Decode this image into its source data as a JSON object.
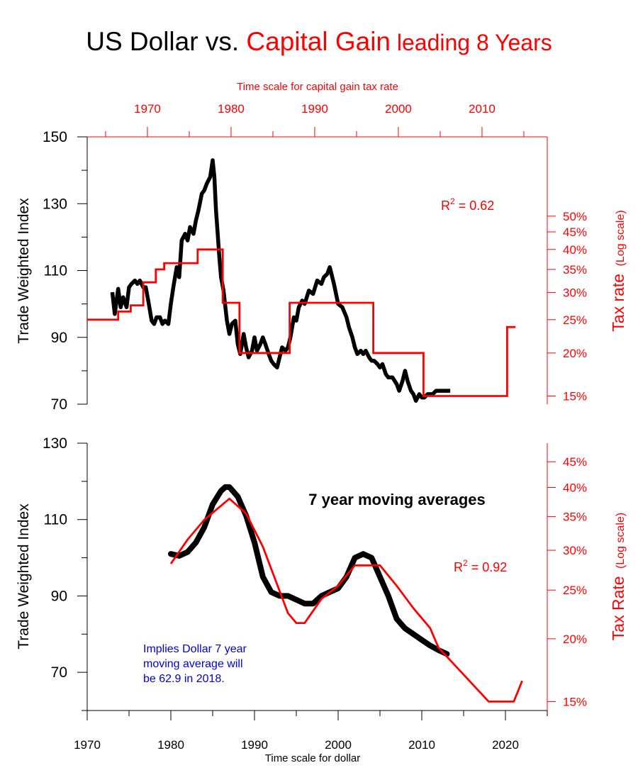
{
  "title": {
    "part1": "US Dollar vs. ",
    "part2": "Capital Gain",
    "part3": " leading 8 Years"
  },
  "colors": {
    "dollar": "#000000",
    "tax": "#ff0000",
    "note": "#0000dd"
  },
  "chart_data": [
    {
      "type": "line",
      "title": "US Dollar vs. Capital Gain leading 8 Years",
      "ylabel": "Trade Weighted Index",
      "ylabel_right": "Tax rate",
      "ylabel_right_suffix": "(Log scale)",
      "xlabel_top": "Time scale for capital gain tax rate",
      "ylim": [
        70,
        150
      ],
      "y_ticks": [
        70,
        90,
        110,
        130,
        150
      ],
      "x_top_ticks": [
        "1970",
        "1980",
        "1990",
        "2000",
        "2010"
      ],
      "x_top_range": [
        1962.8,
        2017.8
      ],
      "x_bottom_range": [
        1970,
        2025
      ],
      "right_ticks": [
        "15%",
        "20%",
        "25%",
        "30%",
        "35%",
        "40%",
        "45%",
        "50%"
      ],
      "right_scale": "log",
      "right_range_pct": [
        14.2,
        85
      ],
      "annotation": "R2 = 0.62",
      "series": [
        {
          "x": [
            1973.0,
            1973.3,
            1973.7,
            1974.0,
            1974.3,
            1974.7,
            1975.0,
            1975.3,
            1975.7,
            1976.0,
            1976.3,
            1976.7,
            1977.0,
            1977.3,
            1977.7,
            1978.0,
            1978.3,
            1978.7,
            1979.0,
            1979.3,
            1979.7,
            1980.0,
            1980.3,
            1980.7,
            1981.0,
            1981.3,
            1981.7,
            1982.0,
            1982.3,
            1982.7,
            1983.0,
            1983.3,
            1983.7,
            1984.0,
            1984.3,
            1984.7,
            1985.0,
            1985.2,
            1985.4,
            1985.6,
            1985.8,
            1986.0,
            1986.3,
            1986.7,
            1987.0,
            1987.3,
            1987.7,
            1988.0,
            1988.3,
            1988.7,
            1989.0,
            1989.3,
            1989.7,
            1990.0,
            1990.3,
            1990.7,
            1991.0,
            1991.3,
            1991.7,
            1992.0,
            1992.3,
            1992.7,
            1993.0,
            1993.3,
            1993.7,
            1994.0,
            1994.3,
            1994.7,
            1995.0,
            1995.3,
            1995.7,
            1996.0,
            1996.5,
            1997.0,
            1997.5,
            1998.0,
            1998.3,
            1998.7,
            1999.0,
            1999.5,
            2000.0,
            2000.5,
            2001.0,
            2001.3,
            2001.7,
            2002.0,
            2002.3,
            2002.7,
            2003.0,
            2003.3,
            2003.7,
            2004.0,
            2004.3,
            2004.7,
            2005.0,
            2005.3,
            2005.7,
            2006.0,
            2006.5,
            2007.0,
            2007.3,
            2007.7,
            2008.0,
            2008.3,
            2008.7,
            2009.0,
            2009.3,
            2009.7,
            2010.0,
            2010.3,
            2010.7,
            2011.0,
            2011.3,
            2011.7,
            2012.0,
            2012.5,
            2013.0,
            2013.4
          ],
          "y": [
            103.5,
            97,
            104.5,
            99,
            102,
            99,
            105,
            106,
            107,
            106,
            107,
            105,
            105,
            101,
            95,
            94,
            96,
            96,
            94,
            95,
            94,
            100,
            105,
            111,
            108,
            119,
            121,
            119,
            123,
            121,
            125,
            128,
            133,
            134,
            136,
            138,
            143,
            138,
            128,
            121,
            114,
            108,
            104,
            95,
            91,
            94,
            95,
            88,
            85,
            91,
            87,
            84,
            86,
            90,
            86,
            88,
            90,
            88,
            85,
            83,
            82,
            81,
            84,
            87,
            86,
            87,
            90,
            96,
            95,
            99,
            101,
            100,
            104,
            103,
            107,
            106,
            108,
            109,
            111,
            106,
            100,
            99,
            96,
            93,
            90,
            87,
            85,
            86,
            85,
            86,
            84,
            83,
            83,
            82,
            81,
            82,
            79,
            78,
            78,
            76,
            74,
            77,
            80,
            77,
            74,
            73,
            71,
            73,
            72,
            72,
            73,
            73,
            73,
            74,
            74,
            74,
            74,
            74
          ],
          "name": ""
        },
        {
          "steps": [
            [
              1962.8,
              25
            ],
            [
              1966.5,
              26.4
            ],
            [
              1968,
              27.5
            ],
            [
              1969.5,
              32.1
            ],
            [
              1971,
              35
            ],
            [
              1972,
              36.5
            ],
            [
              1976,
              40
            ],
            [
              1979,
              28
            ],
            [
              1981,
              20
            ],
            [
              1987,
              28
            ],
            [
              1997,
              20
            ],
            [
              2003,
              15
            ],
            [
              2013,
              15
            ],
            [
              2013,
              23.8
            ],
            [
              2014,
              23.8
            ]
          ],
          "name": ""
        }
      ]
    },
    {
      "type": "line",
      "title": "7 year moving averages",
      "ylabel": "Trade Weighted Index",
      "ylabel_right": "Tax Rate",
      "ylabel_right_suffix": "(Log scale)",
      "xlabel": "Time scale for dollar",
      "ylim": [
        60,
        130
      ],
      "y_ticks": [
        70,
        90,
        110,
        130
      ],
      "x_ticks": [
        "1970",
        "1980",
        "1990",
        "2000",
        "2010",
        "2020"
      ],
      "x_range": [
        1970,
        2025
      ],
      "right_ticks": [
        "15%",
        "20%",
        "25%",
        "30%",
        "35%",
        "40%",
        "45%"
      ],
      "right_scale": "log",
      "right_range_pct": [
        14.4,
        49
      ],
      "annotation": "R2 = 0.92",
      "note": [
        "Implies Dollar 7 year",
        "moving average will",
        "be 62.9 in 2018."
      ],
      "series": [
        {
          "x": [
            1980,
            1981,
            1982,
            1983,
            1984,
            1985,
            1986,
            1986.5,
            1987,
            1988,
            1989,
            1990,
            1991,
            1992,
            1993,
            1994,
            1995,
            1996,
            1997,
            1998,
            1999,
            2000,
            2001,
            2002,
            2003,
            2004,
            2005,
            2006,
            2007,
            2008,
            2009,
            2010,
            2011,
            2012,
            2013
          ],
          "y": [
            101,
            100.5,
            101.5,
            104,
            108,
            114,
            117.5,
            118.5,
            118.5,
            116,
            111,
            104,
            95,
            91,
            90,
            90,
            89,
            88,
            88,
            90,
            91,
            92,
            95,
            100,
            101,
            100,
            95,
            90,
            84,
            81.5,
            80,
            78.5,
            77,
            75.8,
            74.8
          ],
          "name": ""
        },
        {
          "points": [
            [
              1980,
              28.2
            ],
            [
              1982,
              31.5
            ],
            [
              1984,
              34.5
            ],
            [
              1987,
              38
            ],
            [
              1989,
              35.5
            ],
            [
              1991,
              30.5
            ],
            [
              1994,
              22.5
            ],
            [
              1995,
              21.5
            ],
            [
              1996,
              21.5
            ],
            [
              1998,
              24
            ],
            [
              2000,
              25.5
            ],
            [
              2002,
              28
            ],
            [
              2005,
              28
            ],
            [
              2007,
              25.5
            ],
            [
              2009,
              23
            ],
            [
              2011,
              21
            ],
            [
              2012,
              19.2
            ],
            [
              2018,
              15
            ],
            [
              2021,
              15
            ],
            [
              2022,
              16.5
            ]
          ],
          "name": ""
        }
      ]
    }
  ],
  "labels": {
    "r2_top": "R2 = 0.62",
    "r2_bottom": "R2 = 0.92",
    "moving_avg": "7 year moving averages",
    "note_line1": "Implies Dollar 7 year",
    "note_line2": "moving average will",
    "note_line3": "be 62.9 in 2018.",
    "top_axis_title": "Time scale for capital gain tax rate",
    "bottom_axis_title": "Time scale for dollar",
    "left_ylabel": "Trade Weighted Index",
    "right_ylabel_top": "Tax rate",
    "right_ylabel_bottom": "Tax Rate",
    "log_scale": "(Log scale)"
  }
}
